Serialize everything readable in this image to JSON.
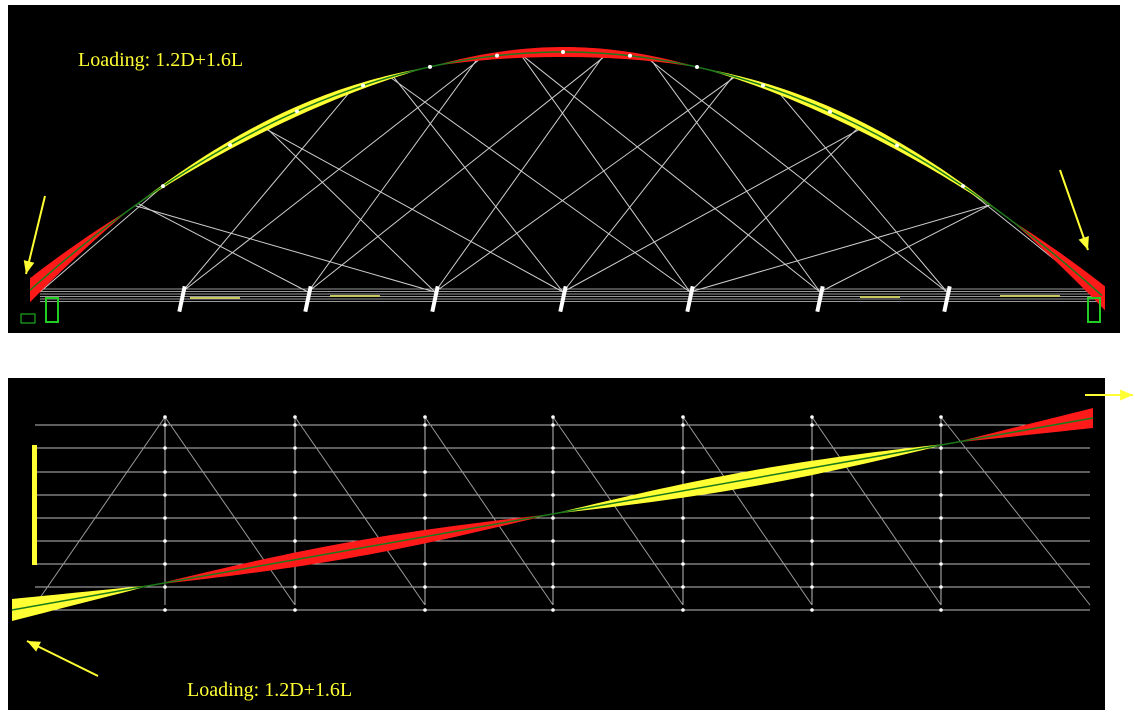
{
  "panels": [
    {
      "label": "Loading: 1.2D+1.6L"
    },
    {
      "label": "Loading: 1.2D+1.6L"
    }
  ]
}
